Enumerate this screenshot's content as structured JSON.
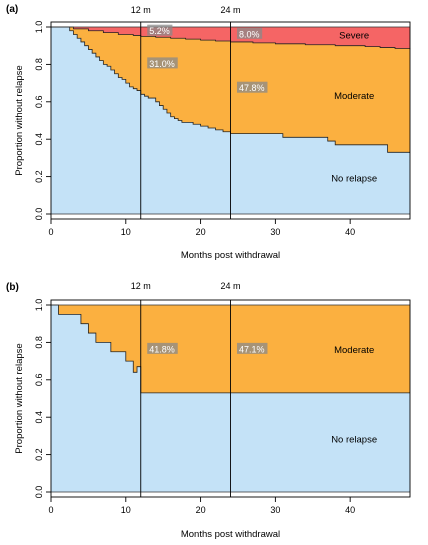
{
  "chart_data": [
    {
      "panel": "(a)",
      "type": "area",
      "xlabel": "Months post withdrawal",
      "ylabel": "Proportion without relapse",
      "xlim": [
        0,
        48
      ],
      "ylim": [
        0,
        1
      ],
      "xticks": [
        "0",
        "10",
        "20",
        "30",
        "40"
      ],
      "xtick_values": [
        0,
        10,
        20,
        30,
        40
      ],
      "yticks": [
        "0.0",
        "0.2",
        "0.4",
        "0.6",
        "0.8",
        "1.0"
      ],
      "ytick_values": [
        0,
        0.2,
        0.4,
        0.6,
        0.8,
        1.0
      ],
      "reference_lines": [
        {
          "x": 12,
          "label": "12 m"
        },
        {
          "x": 24,
          "label": "24 m"
        }
      ],
      "region_labels": [
        {
          "text": "Severe",
          "x": 40,
          "y": 0.955
        },
        {
          "text": "Moderate",
          "x": 40,
          "y": 0.63
        },
        {
          "text": "No relapse",
          "x": 40,
          "y": 0.19
        }
      ],
      "annotations": [
        {
          "text": "5.2%",
          "x": 13.0,
          "y": 0.975
        },
        {
          "text": "8.0%",
          "x": 25.0,
          "y": 0.958
        },
        {
          "text": "31.0%",
          "x": 13.0,
          "y": 0.8
        },
        {
          "text": "47.8%",
          "x": 25.0,
          "y": 0.67
        }
      ],
      "colors": {
        "severe": "#f56565",
        "moderate": "#fbb040",
        "no_relapse": "#c4e2f7"
      },
      "series": [
        {
          "name": "No relapse",
          "x": [
            0,
            2,
            2.5,
            3,
            3.5,
            4,
            4.5,
            5,
            5.5,
            6,
            6.5,
            7,
            7.5,
            8,
            8.5,
            9,
            9.5,
            10,
            10.5,
            11,
            11.5,
            12,
            12.5,
            13,
            14,
            14.5,
            15,
            15.5,
            16,
            16.5,
            17,
            17.5,
            18,
            19,
            20,
            21,
            22,
            23,
            24,
            25,
            27,
            31,
            37,
            38,
            44,
            45,
            48
          ],
          "y": [
            1.0,
            1.0,
            0.98,
            0.96,
            0.94,
            0.92,
            0.9,
            0.88,
            0.86,
            0.84,
            0.82,
            0.8,
            0.79,
            0.77,
            0.75,
            0.73,
            0.72,
            0.7,
            0.68,
            0.67,
            0.66,
            0.64,
            0.63,
            0.62,
            0.6,
            0.58,
            0.56,
            0.54,
            0.52,
            0.51,
            0.5,
            0.49,
            0.49,
            0.48,
            0.47,
            0.46,
            0.45,
            0.44,
            0.43,
            0.43,
            0.43,
            0.41,
            0.39,
            0.37,
            0.37,
            0.33,
            0.33
          ]
        },
        {
          "name": "Moderate",
          "x": [
            0,
            2,
            3,
            4,
            5,
            6,
            7,
            8,
            9,
            10,
            11,
            12,
            13,
            14,
            16,
            18,
            20,
            22,
            24,
            27,
            30,
            34,
            38,
            42,
            44,
            46,
            48
          ],
          "y": [
            1.0,
            1.0,
            0.99,
            0.99,
            0.98,
            0.98,
            0.97,
            0.97,
            0.96,
            0.96,
            0.955,
            0.95,
            0.95,
            0.945,
            0.94,
            0.935,
            0.93,
            0.925,
            0.92,
            0.915,
            0.91,
            0.905,
            0.9,
            0.895,
            0.89,
            0.885,
            0.88
          ]
        }
      ]
    },
    {
      "panel": "(b)",
      "type": "area",
      "xlabel": "Months post withdrawal",
      "ylabel": "Proportion without relapse",
      "xlim": [
        0,
        48
      ],
      "ylim": [
        0,
        1
      ],
      "xticks": [
        "0",
        "10",
        "20",
        "30",
        "40"
      ],
      "xtick_values": [
        0,
        10,
        20,
        30,
        40
      ],
      "yticks": [
        "0.0",
        "0.2",
        "0.4",
        "0.6",
        "0.8",
        "1.0"
      ],
      "ytick_values": [
        0,
        0.2,
        0.4,
        0.6,
        0.8,
        1.0
      ],
      "reference_lines": [
        {
          "x": 12,
          "label": "12 m"
        },
        {
          "x": 24,
          "label": "24 m"
        }
      ],
      "region_labels": [
        {
          "text": "Moderate",
          "x": 40,
          "y": 0.76
        },
        {
          "text": "No relapse",
          "x": 40,
          "y": 0.28
        }
      ],
      "annotations": [
        {
          "text": "41.8%",
          "x": 13.0,
          "y": 0.76
        },
        {
          "text": "47.1%",
          "x": 25.0,
          "y": 0.76
        }
      ],
      "colors": {
        "moderate": "#fbb040",
        "no_relapse": "#c4e2f7"
      },
      "series": [
        {
          "name": "No relapse",
          "x": [
            0,
            1,
            3,
            4,
            5,
            6,
            8,
            9,
            10,
            11,
            11.5,
            12,
            48
          ],
          "y": [
            1.0,
            0.95,
            0.95,
            0.9,
            0.85,
            0.8,
            0.75,
            0.75,
            0.7,
            0.64,
            0.67,
            0.53,
            0.53
          ]
        }
      ]
    }
  ]
}
